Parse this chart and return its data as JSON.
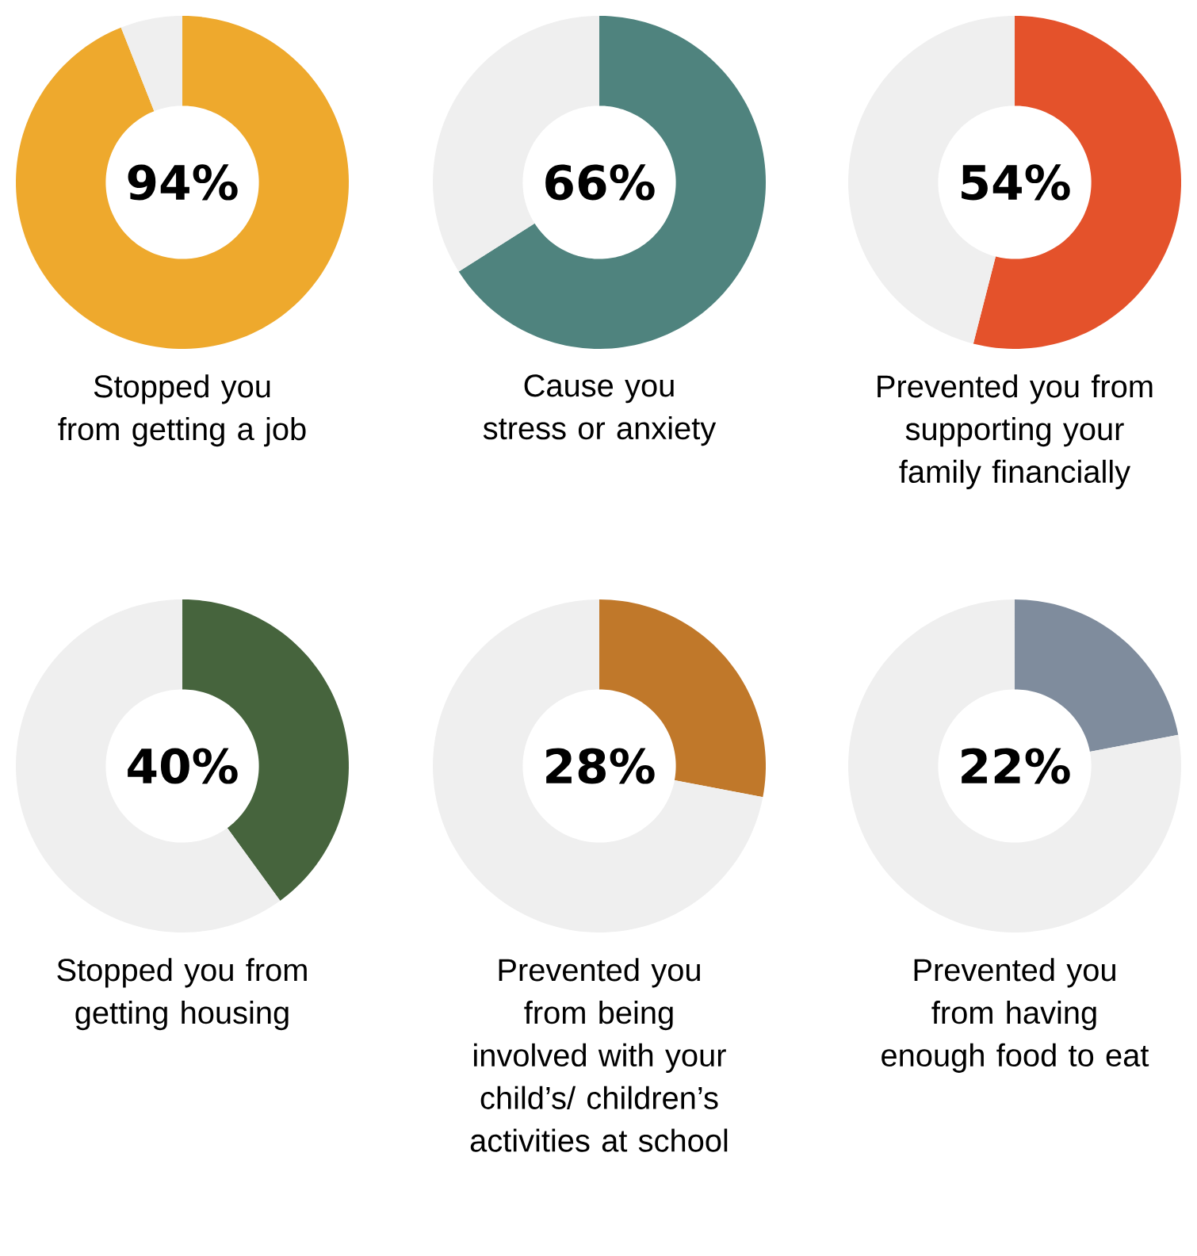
{
  "chart_data": [
    {
      "type": "donut",
      "title": "Stopped you from getting a job",
      "categories": [
        null,
        null
      ],
      "values": [
        94,
        6
      ],
      "colors": [
        "#eea92d",
        "#efefef"
      ],
      "value_labels": [
        "94%",
        null
      ]
    },
    {
      "type": "donut",
      "title": "Cause you stress or anxiety",
      "categories": [
        null,
        null
      ],
      "values": [
        66,
        34
      ],
      "colors": [
        "#4f837e",
        "#efefef"
      ],
      "value_labels": [
        "66%",
        null
      ]
    },
    {
      "type": "donut",
      "title": "Prevented you from supporting your family financially",
      "categories": [
        null,
        null
      ],
      "values": [
        54,
        46
      ],
      "colors": [
        "#e4522b",
        "#efefef"
      ],
      "value_labels": [
        "54%",
        null
      ]
    },
    {
      "type": "donut",
      "title": "Stopped you from getting housing",
      "categories": [
        null,
        null
      ],
      "values": [
        40,
        60
      ],
      "colors": [
        "#46643d",
        "#efefef"
      ],
      "value_labels": [
        "40%",
        null
      ]
    },
    {
      "type": "donut",
      "title": "Prevented you from being involved with your child’s/ children’s activities at school",
      "categories": [
        null,
        null
      ],
      "values": [
        28,
        72
      ],
      "colors": [
        "#c0782a",
        "#efefef"
      ],
      "value_labels": [
        "28%",
        null
      ]
    },
    {
      "type": "donut",
      "title": "Prevented you from having enough food to eat",
      "categories": [
        null,
        null
      ],
      "values": [
        22,
        78
      ],
      "colors": [
        "#7f8c9d",
        "#efefef"
      ],
      "value_labels": [
        "22%",
        null
      ]
    }
  ]
}
